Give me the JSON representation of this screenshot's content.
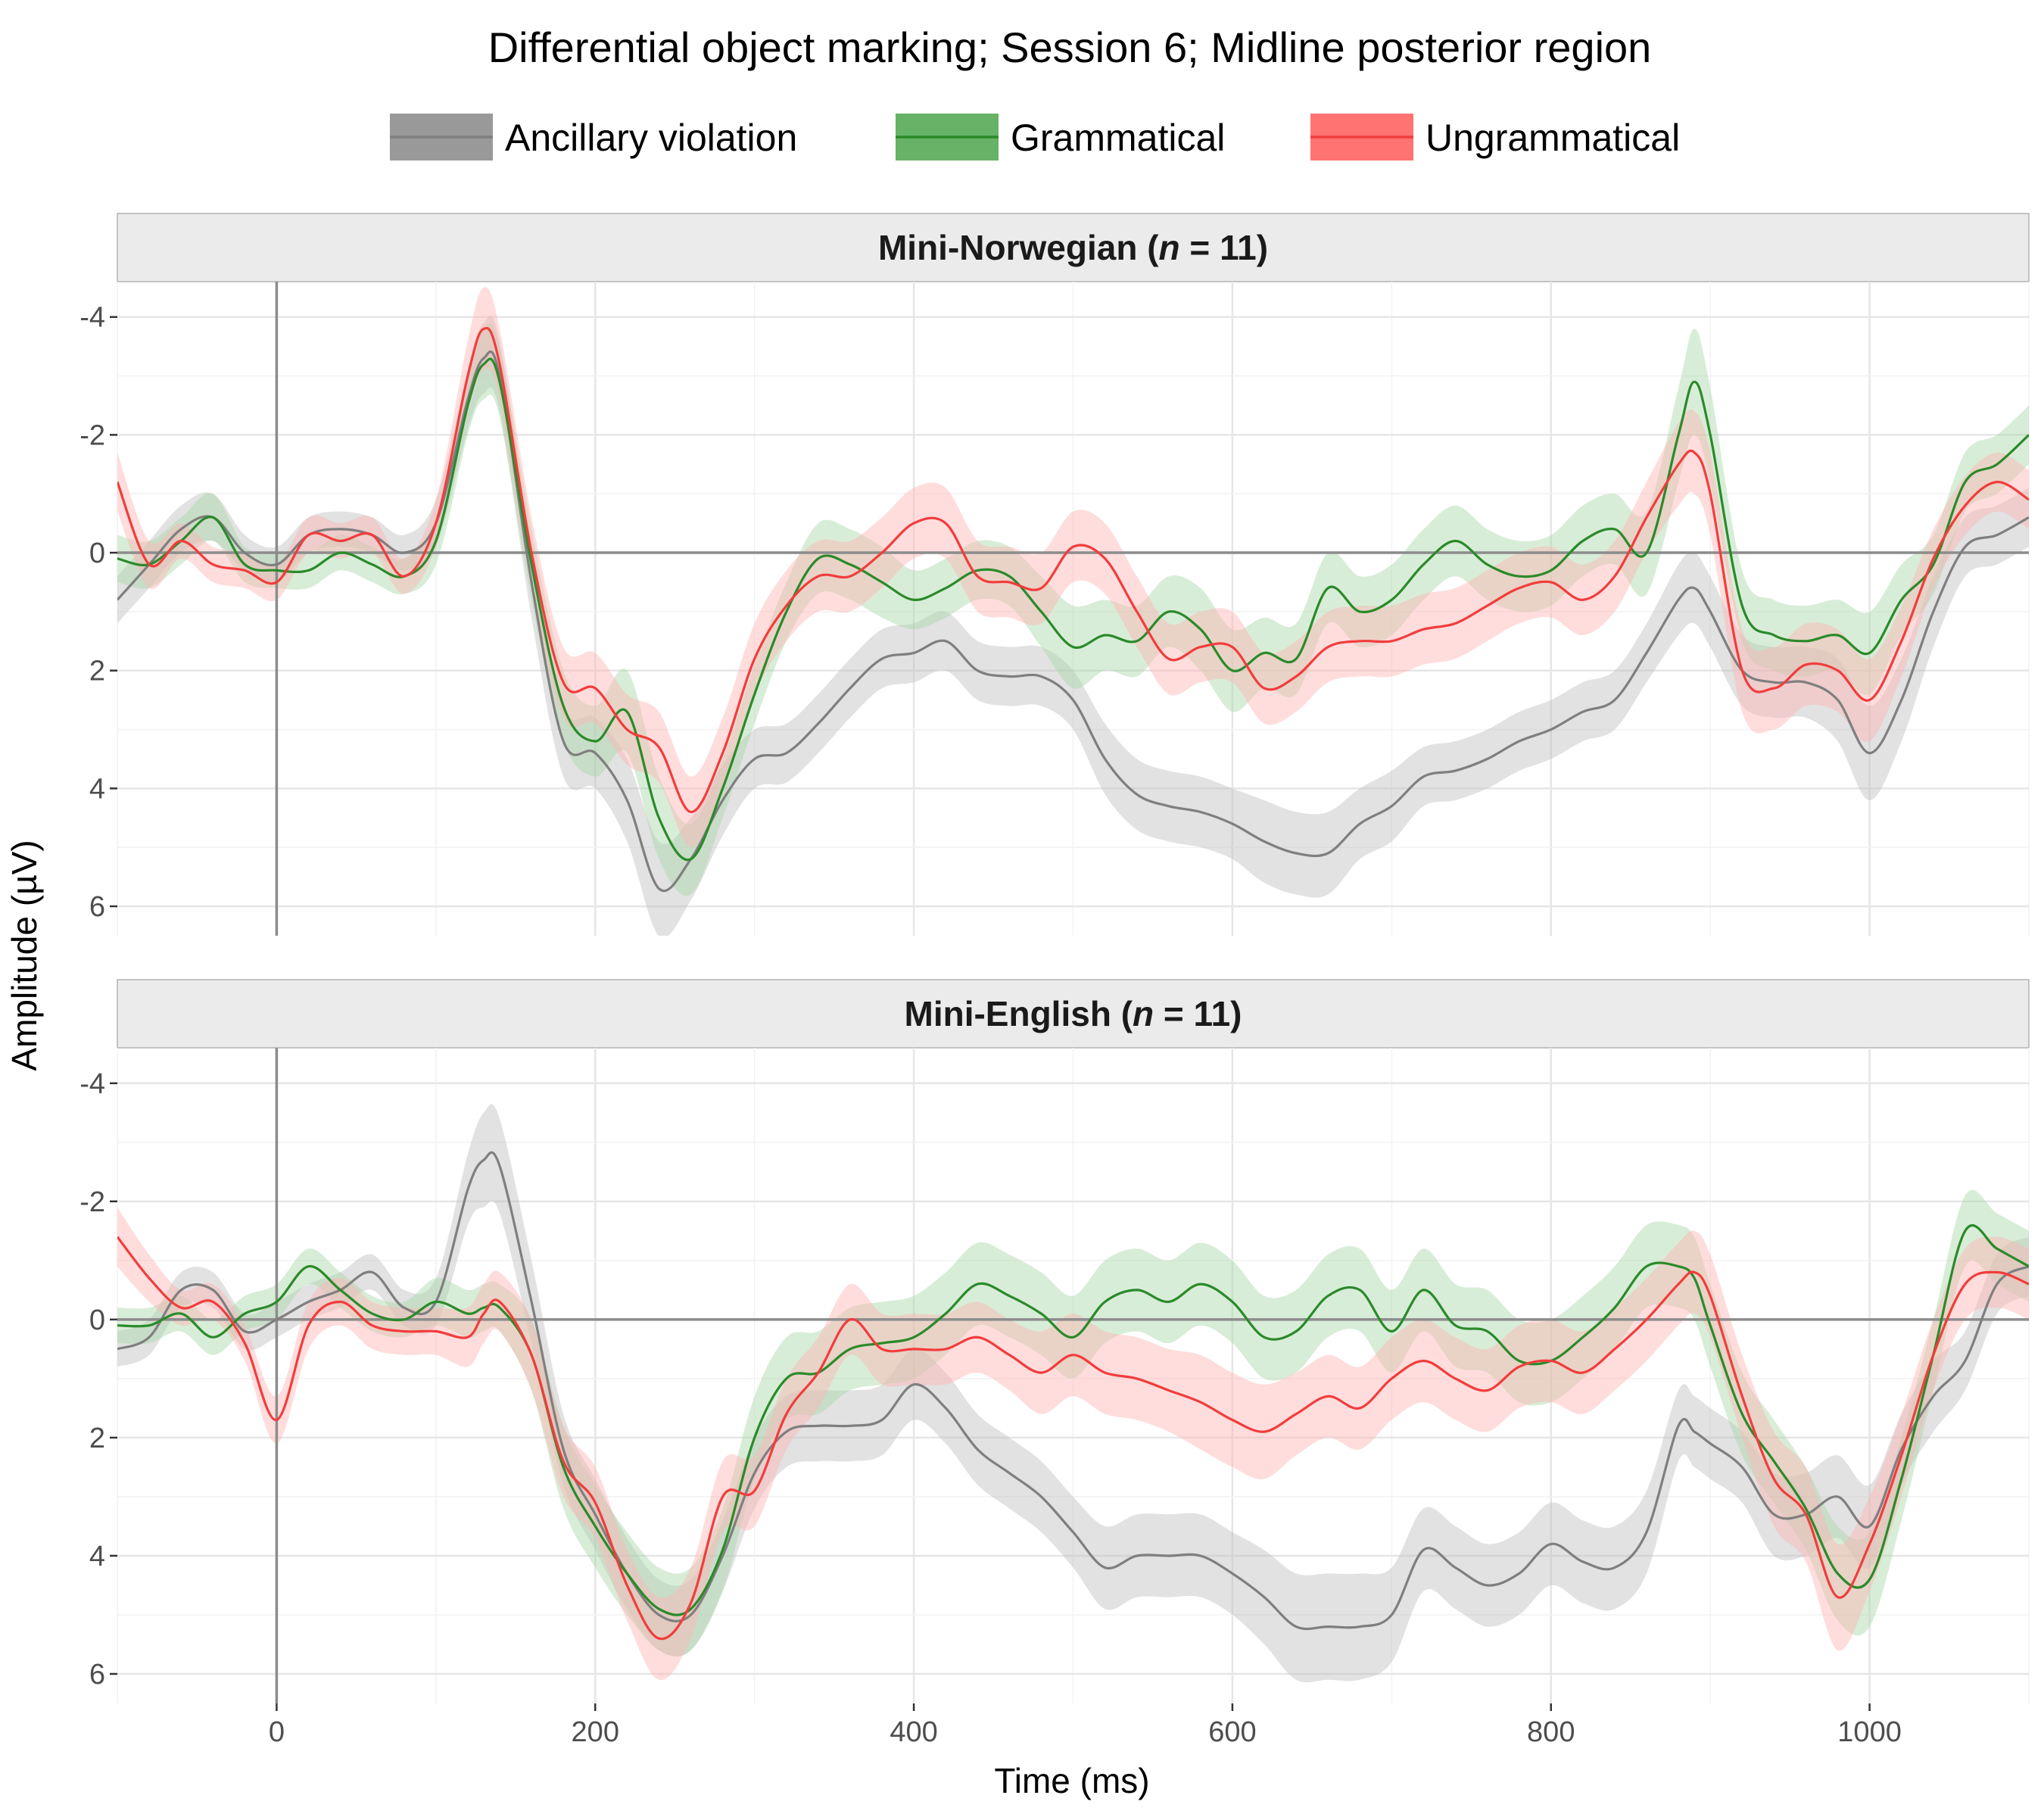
{
  "chart_data": {
    "type": "line",
    "title": "Differential object marking; Session 6; Midline posterior region",
    "xlabel": "Time (ms)",
    "ylabel": "Amplitude (µV)",
    "xlim": [
      -100,
      1100
    ],
    "ylim": [
      -4.6,
      6.5
    ],
    "y_reversed": true,
    "x_ticks": [
      0,
      200,
      400,
      600,
      800,
      1000
    ],
    "y_ticks": [
      -4,
      -2,
      0,
      2,
      4,
      6
    ],
    "y_tick_labels": [
      "-4",
      "-2",
      "0",
      "2",
      "4",
      "6"
    ],
    "grid": true,
    "legend_position": "top",
    "reference_lines": {
      "x": 0,
      "y": 0
    },
    "legend": [
      {
        "name": "Ancillary violation",
        "color": "#7f7f7f",
        "band_color": "#bfbfbf",
        "fill_color": "#999999"
      },
      {
        "name": "Grammatical",
        "color": "#2a8a2a",
        "band_color": "#a8d8a8",
        "fill_color": "#66b266"
      },
      {
        "name": "Ungrammatical",
        "color": "#f23c3c",
        "band_color": "#ffb3b3",
        "fill_color": "#ff7373"
      }
    ],
    "panels": [
      {
        "strip_prefix": "Mini-Norwegian (",
        "strip_n": "n",
        "strip_suffix": " = 11)",
        "x": [
          -100,
          -80,
          -60,
          -40,
          -20,
          0,
          20,
          40,
          60,
          80,
          100,
          120,
          130,
          140,
          160,
          180,
          200,
          220,
          240,
          260,
          280,
          300,
          320,
          340,
          360,
          380,
          400,
          420,
          440,
          460,
          480,
          500,
          520,
          540,
          560,
          580,
          600,
          620,
          640,
          660,
          680,
          700,
          720,
          740,
          760,
          780,
          800,
          820,
          840,
          860,
          880,
          890,
          900,
          920,
          940,
          960,
          980,
          1000,
          1020,
          1040,
          1060,
          1080,
          1100
        ],
        "series": [
          {
            "name": "Ancillary violation",
            "values": [
              0.8,
              0.2,
              -0.4,
              -0.6,
              0.0,
              0.2,
              -0.3,
              -0.4,
              -0.3,
              0.0,
              -0.5,
              -2.6,
              -3.3,
              -3.0,
              0.5,
              3.2,
              3.4,
              4.2,
              5.7,
              5.2,
              4.2,
              3.5,
              3.4,
              2.9,
              2.3,
              1.8,
              1.7,
              1.5,
              2.0,
              2.1,
              2.1,
              2.5,
              3.5,
              4.1,
              4.3,
              4.4,
              4.6,
              4.9,
              5.1,
              5.1,
              4.6,
              4.3,
              3.8,
              3.7,
              3.5,
              3.2,
              3.0,
              2.7,
              2.5,
              1.7,
              0.8,
              0.6,
              1.0,
              2.0,
              2.2,
              2.2,
              2.5,
              3.4,
              2.5,
              1.0,
              -0.1,
              -0.3,
              -0.6
            ],
            "band": [
              0.4,
              0.4,
              0.4,
              0.4,
              0.3,
              0.3,
              0.3,
              0.3,
              0.3,
              0.3,
              0.4,
              0.5,
              0.6,
              0.6,
              0.6,
              0.6,
              0.6,
              0.7,
              0.8,
              0.7,
              0.6,
              0.5,
              0.5,
              0.5,
              0.5,
              0.5,
              0.5,
              0.5,
              0.5,
              0.5,
              0.5,
              0.5,
              0.6,
              0.6,
              0.6,
              0.6,
              0.6,
              0.7,
              0.7,
              0.7,
              0.6,
              0.6,
              0.5,
              0.5,
              0.5,
              0.5,
              0.5,
              0.5,
              0.5,
              0.5,
              0.6,
              0.6,
              0.6,
              0.6,
              0.6,
              0.6,
              0.7,
              0.8,
              0.7,
              0.6,
              0.5,
              0.5,
              0.5
            ]
          },
          {
            "name": "Grammatical",
            "values": [
              0.1,
              0.2,
              -0.2,
              -0.6,
              0.2,
              0.3,
              0.3,
              0.0,
              0.2,
              0.4,
              -0.2,
              -2.5,
              -3.2,
              -2.9,
              0.2,
              2.6,
              3.2,
              2.7,
              4.5,
              5.2,
              4.0,
              2.4,
              1.0,
              0.1,
              0.2,
              0.5,
              0.8,
              0.6,
              0.3,
              0.4,
              1.0,
              1.6,
              1.4,
              1.5,
              1.0,
              1.3,
              2.0,
              1.7,
              1.8,
              0.6,
              1.0,
              0.8,
              0.2,
              -0.2,
              0.2,
              0.4,
              0.3,
              -0.2,
              -0.4,
              0.0,
              -2.0,
              -2.9,
              -2.0,
              0.9,
              1.4,
              1.5,
              1.4,
              1.7,
              0.8,
              0.2,
              -1.2,
              -1.5,
              -2.0
            ],
            "band": [
              0.4,
              0.4,
              0.4,
              0.4,
              0.3,
              0.3,
              0.3,
              0.3,
              0.3,
              0.3,
              0.4,
              0.5,
              0.6,
              0.6,
              0.6,
              0.6,
              0.6,
              0.7,
              0.7,
              0.6,
              0.5,
              0.5,
              0.5,
              0.6,
              0.6,
              0.6,
              0.5,
              0.5,
              0.5,
              0.5,
              0.6,
              0.7,
              0.6,
              0.6,
              0.6,
              0.7,
              0.7,
              0.6,
              0.6,
              0.6,
              0.6,
              0.6,
              0.6,
              0.6,
              0.6,
              0.6,
              0.6,
              0.6,
              0.6,
              0.7,
              0.8,
              0.9,
              0.8,
              0.6,
              0.6,
              0.6,
              0.6,
              0.7,
              0.6,
              0.5,
              0.5,
              0.5,
              0.5
            ]
          },
          {
            "name": "Ungrammatical",
            "values": [
              -1.2,
              0.2,
              -0.2,
              0.2,
              0.3,
              0.5,
              -0.3,
              -0.2,
              -0.3,
              0.4,
              -0.5,
              -3.0,
              -3.8,
              -3.2,
              0.0,
              2.2,
              2.3,
              3.0,
              3.3,
              4.4,
              3.4,
              1.8,
              0.9,
              0.4,
              0.4,
              0.0,
              -0.5,
              -0.5,
              0.4,
              0.5,
              0.6,
              -0.1,
              0.1,
              1.0,
              1.8,
              1.6,
              1.6,
              2.3,
              2.1,
              1.6,
              1.5,
              1.5,
              1.3,
              1.2,
              0.9,
              0.6,
              0.5,
              0.8,
              0.4,
              -0.6,
              -1.5,
              -1.7,
              -1.0,
              2.0,
              2.3,
              1.9,
              2.0,
              2.5,
              1.5,
              0.1,
              -0.8,
              -1.2,
              -0.9
            ],
            "band": [
              0.5,
              0.4,
              0.3,
              0.3,
              0.3,
              0.3,
              0.3,
              0.3,
              0.3,
              0.3,
              0.4,
              0.6,
              0.7,
              0.6,
              0.6,
              0.6,
              0.6,
              0.6,
              0.6,
              0.6,
              0.6,
              0.6,
              0.6,
              0.6,
              0.6,
              0.6,
              0.6,
              0.6,
              0.6,
              0.6,
              0.6,
              0.6,
              0.6,
              0.6,
              0.6,
              0.6,
              0.6,
              0.6,
              0.6,
              0.6,
              0.6,
              0.6,
              0.6,
              0.6,
              0.6,
              0.6,
              0.6,
              0.6,
              0.6,
              0.6,
              0.7,
              0.7,
              0.7,
              0.7,
              0.7,
              0.7,
              0.7,
              0.7,
              0.6,
              0.5,
              0.5,
              0.5,
              0.5
            ]
          }
        ]
      },
      {
        "strip_prefix": "Mini-English (",
        "strip_n": "n",
        "strip_suffix": " = 11)",
        "x": [
          -100,
          -80,
          -60,
          -40,
          -20,
          0,
          20,
          40,
          60,
          80,
          100,
          120,
          130,
          140,
          160,
          180,
          200,
          220,
          240,
          260,
          280,
          300,
          320,
          340,
          360,
          380,
          400,
          420,
          440,
          460,
          480,
          500,
          520,
          540,
          560,
          580,
          600,
          620,
          640,
          660,
          680,
          700,
          720,
          740,
          760,
          780,
          800,
          820,
          840,
          860,
          880,
          890,
          900,
          920,
          940,
          960,
          980,
          1000,
          1020,
          1040,
          1060,
          1080,
          1100
        ],
        "series": [
          {
            "name": "Ancillary violation",
            "values": [
              0.5,
              0.3,
              -0.5,
              -0.5,
              0.2,
              0.0,
              -0.3,
              -0.5,
              -0.8,
              -0.2,
              -0.3,
              -2.2,
              -2.7,
              -2.6,
              -0.3,
              2.2,
              3.3,
              4.3,
              5.0,
              5.0,
              4.0,
              2.6,
              1.9,
              1.8,
              1.8,
              1.7,
              1.1,
              1.5,
              2.2,
              2.6,
              3.0,
              3.6,
              4.2,
              4.0,
              4.0,
              4.0,
              4.3,
              4.7,
              5.2,
              5.2,
              5.2,
              5.0,
              3.9,
              4.2,
              4.5,
              4.3,
              3.8,
              4.1,
              4.2,
              3.6,
              1.8,
              1.9,
              2.1,
              2.5,
              3.3,
              3.3,
              3.0,
              3.5,
              2.2,
              1.3,
              0.7,
              -0.6,
              -0.9
            ],
            "band": [
              0.3,
              0.3,
              0.3,
              0.3,
              0.3,
              0.3,
              0.3,
              0.3,
              0.3,
              0.3,
              0.4,
              0.6,
              0.8,
              0.8,
              0.7,
              0.6,
              0.6,
              0.6,
              0.6,
              0.6,
              0.6,
              0.6,
              0.6,
              0.6,
              0.6,
              0.6,
              0.6,
              0.6,
              0.6,
              0.6,
              0.6,
              0.6,
              0.7,
              0.7,
              0.7,
              0.7,
              0.7,
              0.8,
              0.9,
              0.9,
              0.9,
              0.8,
              0.7,
              0.7,
              0.7,
              0.7,
              0.7,
              0.7,
              0.7,
              0.7,
              0.6,
              0.6,
              0.6,
              0.6,
              0.7,
              0.7,
              0.7,
              0.7,
              0.6,
              0.6,
              0.5,
              0.5,
              0.5
            ]
          },
          {
            "name": "Grammatical",
            "values": [
              0.1,
              0.1,
              -0.1,
              0.3,
              -0.1,
              -0.3,
              -0.9,
              -0.5,
              -0.1,
              0.0,
              -0.3,
              -0.1,
              -0.2,
              -0.2,
              0.6,
              2.5,
              3.5,
              4.3,
              4.9,
              4.9,
              3.9,
              2.0,
              1.0,
              0.9,
              0.5,
              0.4,
              0.3,
              -0.1,
              -0.6,
              -0.4,
              -0.1,
              0.3,
              -0.3,
              -0.5,
              -0.3,
              -0.6,
              -0.3,
              0.3,
              0.2,
              -0.4,
              -0.5,
              0.2,
              -0.5,
              0.1,
              0.2,
              0.7,
              0.7,
              0.3,
              -0.2,
              -0.9,
              -0.9,
              -0.7,
              0.1,
              1.6,
              2.4,
              3.2,
              4.3,
              4.4,
              2.7,
              0.6,
              -1.5,
              -1.2,
              -0.9
            ],
            "band": [
              0.3,
              0.3,
              0.3,
              0.3,
              0.3,
              0.3,
              0.3,
              0.3,
              0.3,
              0.3,
              0.4,
              0.4,
              0.4,
              0.4,
              0.6,
              0.7,
              0.7,
              0.7,
              0.7,
              0.7,
              0.7,
              0.7,
              0.7,
              0.7,
              0.7,
              0.7,
              0.7,
              0.7,
              0.7,
              0.7,
              0.7,
              0.7,
              0.7,
              0.7,
              0.7,
              0.7,
              0.7,
              0.7,
              0.7,
              0.7,
              0.7,
              0.7,
              0.7,
              0.7,
              0.7,
              0.7,
              0.7,
              0.7,
              0.7,
              0.7,
              0.7,
              0.7,
              0.7,
              0.7,
              0.7,
              0.7,
              0.8,
              0.8,
              0.7,
              0.6,
              0.6,
              0.6,
              0.6
            ]
          },
          {
            "name": "Ungrammatical",
            "values": [
              -1.4,
              -0.7,
              -0.2,
              -0.3,
              0.4,
              1.7,
              0.1,
              -0.3,
              0.1,
              0.2,
              0.2,
              0.3,
              -0.1,
              -0.3,
              0.6,
              2.4,
              3.1,
              4.5,
              5.4,
              4.8,
              3.0,
              2.9,
              1.6,
              0.9,
              0.0,
              0.5,
              0.5,
              0.5,
              0.3,
              0.6,
              0.9,
              0.6,
              0.9,
              1.0,
              1.2,
              1.4,
              1.7,
              1.9,
              1.6,
              1.3,
              1.5,
              1.0,
              0.7,
              1.0,
              1.2,
              0.8,
              0.7,
              0.9,
              0.5,
              0.0,
              -0.6,
              -0.8,
              -0.4,
              1.3,
              2.7,
              3.3,
              4.7,
              3.8,
              2.3,
              0.6,
              -0.6,
              -0.8,
              -0.6
            ],
            "band": [
              0.5,
              0.4,
              0.3,
              0.3,
              0.3,
              0.4,
              0.4,
              0.4,
              0.4,
              0.4,
              0.4,
              0.5,
              0.5,
              0.5,
              0.6,
              0.6,
              0.6,
              0.6,
              0.7,
              0.6,
              0.6,
              0.6,
              0.6,
              0.6,
              0.6,
              0.6,
              0.6,
              0.6,
              0.6,
              0.6,
              0.7,
              0.7,
              0.7,
              0.7,
              0.7,
              0.8,
              0.8,
              0.8,
              0.7,
              0.7,
              0.7,
              0.7,
              0.7,
              0.7,
              0.7,
              0.7,
              0.7,
              0.7,
              0.7,
              0.7,
              0.7,
              0.7,
              0.7,
              0.7,
              0.8,
              0.8,
              0.9,
              0.8,
              0.7,
              0.6,
              0.6,
              0.6,
              0.6
            ]
          }
        ]
      }
    ]
  }
}
